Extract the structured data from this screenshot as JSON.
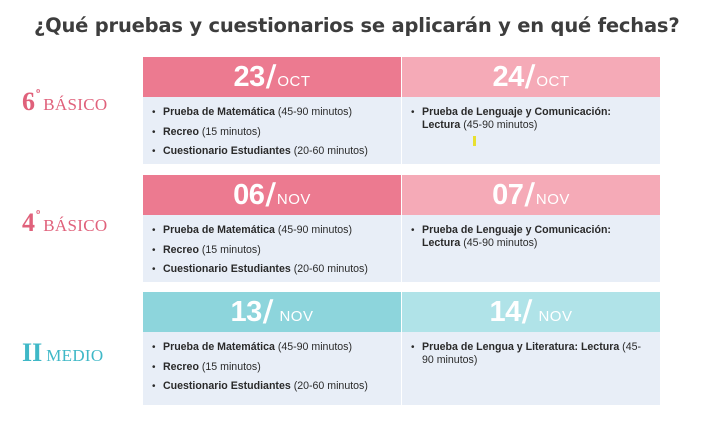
{
  "title": "¿Qué pruebas y cuestionarios se aplicarán y en qué fechas?",
  "rows": [
    {
      "grade_num": "6",
      "grade_sup": "º",
      "grade_label": "BÁSICO",
      "left": {
        "day": "23",
        "month": "OCT",
        "items": [
          {
            "bold": "Prueba de Matemática",
            "rest": " (45-90 minutos)"
          },
          {
            "bold": "Recreo",
            "rest": " (15 minutos)"
          },
          {
            "bold": "Cuestionario Estudiantes",
            "rest": " (20-60 minutos)"
          }
        ]
      },
      "right": {
        "day": "24",
        "month": "OCT",
        "items": [
          {
            "bold": "Prueba de Lenguaje y Comunicación: Lectura",
            "rest": " (45-90 minutos)"
          }
        ]
      }
    },
    {
      "grade_num": "4",
      "grade_sup": "º",
      "grade_label": "BÁSICO",
      "left": {
        "day": "06",
        "month": "NOV",
        "items": [
          {
            "bold": "Prueba de Matemática",
            "rest": " (45-90 minutos)"
          },
          {
            "bold": "Recreo",
            "rest": " (15 minutos)"
          },
          {
            "bold": "Cuestionario Estudiantes",
            "rest": " (20-60 minutos)"
          }
        ]
      },
      "right": {
        "day": "07",
        "month": "NOV",
        "items": [
          {
            "bold": "Prueba de Lenguaje y Comunicación: Lectura",
            "rest": " (45-90 minutos)"
          }
        ]
      }
    },
    {
      "grade_num": "II",
      "grade_sup": "",
      "grade_label": "MEDIO",
      "left": {
        "day": "13",
        "month": "NOV",
        "items": [
          {
            "bold": "Prueba de Matemática",
            "rest": " (45-90 minutos)"
          },
          {
            "bold": "Recreo",
            "rest": " (15 minutos)"
          },
          {
            "bold": "Cuestionario Estudiantes",
            "rest": " (20-60 minutos)"
          }
        ]
      },
      "right": {
        "day": "14",
        "month": "NOV",
        "items": [
          {
            "bold": "Prueba de Lengua y Literatura: Lectura",
            "rest": " (45-90 minutos)"
          }
        ]
      }
    }
  ],
  "colors": {
    "pink_dark": "#ec7a90",
    "pink_light": "#f5aab7",
    "teal_dark": "#8dd5dc",
    "teal_light": "#b0e3e8",
    "body_bg": "#e8eef7",
    "grade_pink": "#e0617b",
    "grade_teal": "#3fb8c7"
  }
}
